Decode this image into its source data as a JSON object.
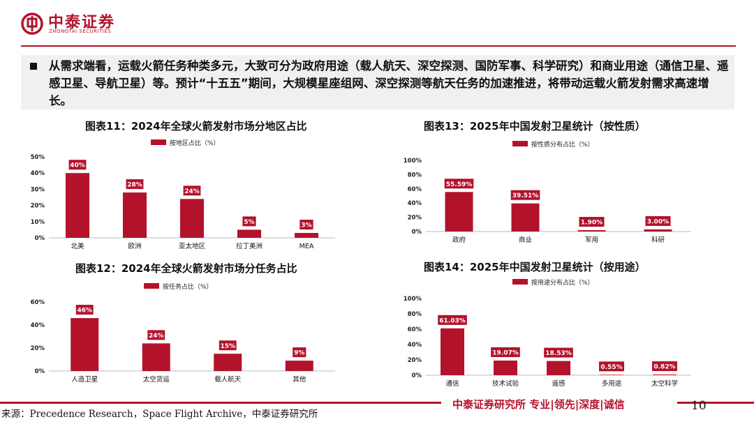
{
  "header": {
    "logo_cn": "中泰证券",
    "logo_en": "ZHONGTAI SECURITIES"
  },
  "summary": {
    "text": "从需求端看，运载火箭任务种类多元，大致可分为政府用途（载人航天、深空探测、国防军事、科学研究）和商业用途（通信卫星、遥感卫星、导航卫星）等。预计“十五五”期间，大规模星座组网、深空探测等航天任务的加速推进，将带动运载火箭发射需求高速增长。"
  },
  "colors": {
    "accent": "#b3122b"
  },
  "chart_data": [
    {
      "type": "bar",
      "title": "图表11：2024年全球火箭发射市场分地区占比",
      "legend": "按地区占比（%）",
      "categories": [
        "北美",
        "欧洲",
        "亚太地区",
        "拉丁美洲",
        "MEA"
      ],
      "values": [
        40,
        28,
        24,
        5,
        3
      ],
      "labels": [
        "40%",
        "28%",
        "24%",
        "5%",
        "3%"
      ],
      "yticks": [
        "0%",
        "10%",
        "20%",
        "30%",
        "40%",
        "50%"
      ],
      "ylim": [
        0,
        50
      ]
    },
    {
      "type": "bar",
      "title": "图表13：2025年中国发射卫星统计（按性质）",
      "legend": "按性质分布占比（%）",
      "categories": [
        "政府",
        "商业",
        "军用",
        "科研"
      ],
      "values": [
        55.59,
        39.51,
        1.9,
        3.0
      ],
      "labels": [
        "55.59%",
        "39.51%",
        "1.90%",
        "3.00%"
      ],
      "yticks": [
        "0%",
        "20%",
        "40%",
        "60%",
        "80%",
        "100%"
      ],
      "ylim": [
        0,
        100
      ]
    },
    {
      "type": "bar",
      "title": "图表12：2024年全球火箭发射市场分任务占比",
      "legend": "按任务占比（%）",
      "categories": [
        "人造卫星",
        "太空货运",
        "载人航天",
        "其他"
      ],
      "values": [
        46,
        24,
        15,
        9
      ],
      "labels": [
        "46%",
        "24%",
        "15%",
        "9%"
      ],
      "yticks": [
        "0%",
        "20%",
        "40%",
        "60%"
      ],
      "ylim": [
        0,
        60
      ]
    },
    {
      "type": "bar",
      "title": "图表14：2025年中国发射卫星统计（按用途）",
      "legend": "按用途分布占比（%）",
      "categories": [
        "通信",
        "技术试验",
        "遥感",
        "多用途",
        "太空科学"
      ],
      "values": [
        61.03,
        19.07,
        18.53,
        0.55,
        0.82
      ],
      "labels": [
        "61.03%",
        "19.07%",
        "18.53%",
        "0.55%",
        "0.82%"
      ],
      "yticks": [
        "0%",
        "20%",
        "40%",
        "60%",
        "80%",
        "100%"
      ],
      "ylim": [
        0,
        100
      ]
    }
  ],
  "footer": {
    "source": "来源：Precedence Research，Space Flight Archive，中泰证券研究所",
    "brand": "中泰证券研究所 专业|领先|深度|诚信",
    "page": "10"
  }
}
